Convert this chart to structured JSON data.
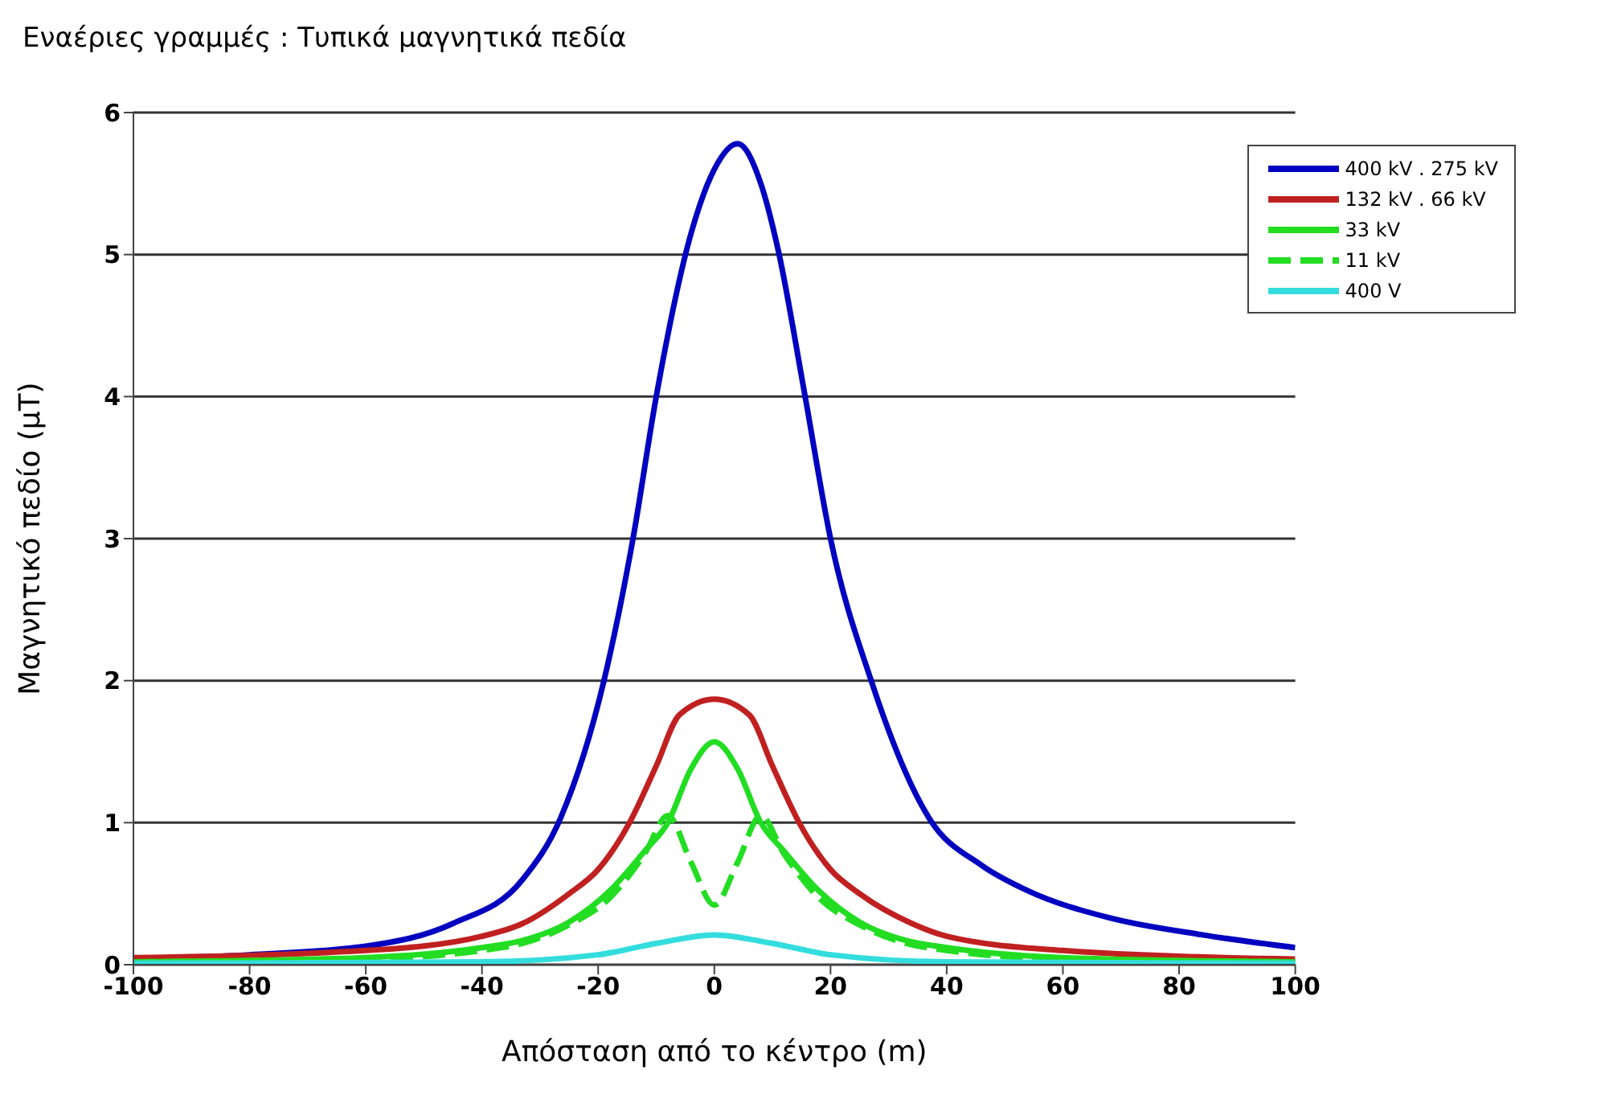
{
  "chart_data": {
    "type": "line",
    "title": "Εναέριες γραμμές : Τυπικά μαγνητικά πεδία",
    "xlabel": "Απόσταση από το κέντρο (m)",
    "ylabel": "Μαγνητικό πεδίο (μT)",
    "xlim": [
      -100,
      100
    ],
    "xticks": [
      -100,
      -80,
      -60,
      -40,
      -20,
      0,
      20,
      40,
      60,
      80,
      100
    ],
    "ylim": [
      0,
      6
    ],
    "yticks": [
      0,
      1,
      2,
      3,
      4,
      5,
      6
    ],
    "grid": "y",
    "legend": "top right",
    "marker": "none",
    "series": [
      {
        "name": "400 kV . 275 kV",
        "color": "#0000c0",
        "line_style": "solid",
        "x": [
          -100,
          -80,
          -60,
          -45,
          -33,
          -26.5,
          -19,
          -14,
          -10,
          -4,
          0,
          4,
          8,
          11,
          15.5,
          20,
          27,
          37,
          46,
          54,
          68,
          84,
          100
        ],
        "values": [
          0.04,
          0.07,
          0.13,
          0.29,
          0.6,
          1.03,
          2.0,
          3.0,
          4.0,
          5.15,
          5.6,
          5.78,
          5.5,
          5.03,
          4.03,
          3.0,
          2.0,
          1.03,
          0.7,
          0.52,
          0.33,
          0.21,
          0.12
        ]
      },
      {
        "name": "132 kV . 66 kV",
        "color": "#c02020",
        "line_style": "solid",
        "x": [
          -100,
          -60,
          -40,
          -33,
          -25,
          -20,
          -14.6,
          -10,
          -6,
          0,
          6,
          10,
          14.6,
          20,
          25,
          34,
          40,
          60,
          100
        ],
        "values": [
          0.05,
          0.1,
          0.2,
          0.29,
          0.5,
          0.67,
          1.0,
          1.4,
          1.76,
          1.87,
          1.76,
          1.4,
          1.0,
          0.67,
          0.5,
          0.29,
          0.2,
          0.1,
          0.04
        ]
      },
      {
        "name": "33 kV",
        "color": "#22dd22",
        "line_style": "solid",
        "x": [
          -100,
          -60,
          -40,
          -33,
          -25,
          -18,
          -12,
          -8,
          -4,
          0,
          4,
          8,
          12,
          18,
          25,
          33,
          40,
          60,
          100
        ],
        "values": [
          0.02,
          0.05,
          0.12,
          0.17,
          0.3,
          0.52,
          0.8,
          1.0,
          1.38,
          1.57,
          1.38,
          1.0,
          0.8,
          0.52,
          0.3,
          0.17,
          0.12,
          0.05,
          0.02
        ]
      },
      {
        "name": "11 kV",
        "color": "#22dd22",
        "line_style": "dashed",
        "x": [
          -100,
          -60,
          -40,
          -33,
          -25,
          -18,
          -12,
          -8,
          -4,
          0,
          4,
          8,
          12,
          18,
          25,
          33,
          40,
          60,
          100
        ],
        "values": [
          0.02,
          0.04,
          0.1,
          0.15,
          0.28,
          0.47,
          0.78,
          1.05,
          0.72,
          0.42,
          0.72,
          1.05,
          0.78,
          0.47,
          0.28,
          0.15,
          0.1,
          0.04,
          0.02
        ]
      },
      {
        "name": "400 V",
        "color": "#33dddd",
        "line_style": "solid",
        "x": [
          -100,
          -40,
          -20,
          -10,
          0,
          10,
          20,
          40,
          100
        ],
        "values": [
          0.01,
          0.02,
          0.07,
          0.15,
          0.21,
          0.15,
          0.07,
          0.02,
          0.01
        ]
      }
    ]
  }
}
